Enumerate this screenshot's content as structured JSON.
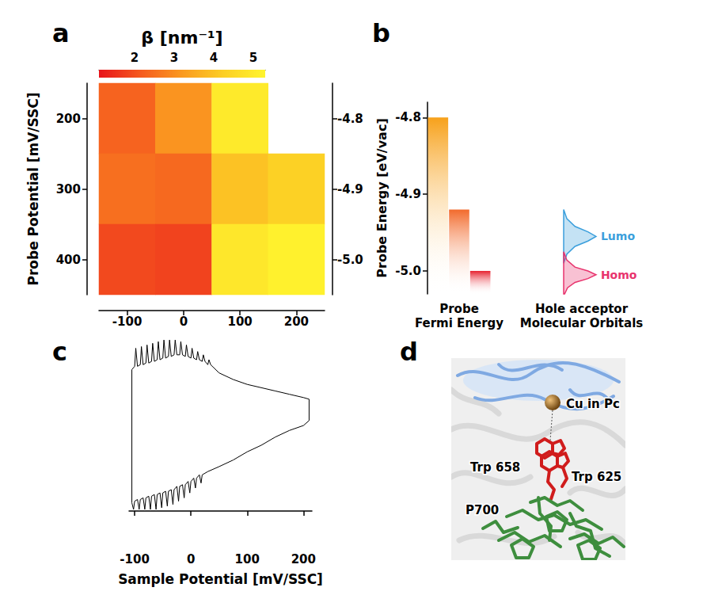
{
  "chart_data": [
    {
      "panel": "a",
      "type": "heatmap",
      "x": [
        -100,
        0,
        100,
        200
      ],
      "y": [
        200,
        300,
        400
      ],
      "ylabel": "Probe Potential [mV/SSC]",
      "y2": [
        -4.8,
        -4.9,
        {
          "value": -5.0,
          "label": "-5.0"
        }
      ],
      "values": [
        [
          2.3,
          3.1,
          5.0,
          null
        ],
        [
          2.5,
          2.4,
          4.0,
          4.3
        ],
        [
          1.9,
          1.8,
          4.9,
          5.2
        ]
      ],
      "colorbar": {
        "title": "β [nm⁻¹]",
        "range": [
          1.1,
          5.3
        ],
        "ticks": [
          2,
          3,
          4,
          5
        ],
        "colors": [
          "#e8141b",
          "#f55a1f",
          "#fa9a20",
          "#fccf25",
          "#fff52e"
        ]
      }
    },
    {
      "panel": "b",
      "type": "bar",
      "categories": [
        null,
        null,
        null
      ],
      "values": [
        -4.8,
        -4.92,
        -5.0
      ],
      "colors": [
        "#f7a11a",
        "#f26a2c",
        "#e6202e"
      ],
      "xlabel": "Probe\nFermi Energy",
      "ylabel": "Probe Energy [eV/vac]",
      "ylim": [
        -5.03,
        -4.78
      ],
      "yticks": [
        -4.8,
        -4.9,
        {
          "value": -5.0,
          "label": "-5.0"
        }
      ],
      "orbitals": {
        "title": "Hole acceptor\nMolecular Orbitals",
        "type": "area",
        "xlim": [
          0,
          1.1
        ],
        "tick_labels": false,
        "series": [
          {
            "name": "Lumo",
            "color": "#3b9fdc",
            "energy": [
              -4.92,
              -4.932,
              -4.942,
              -4.949,
              -4.955,
              -4.961,
              -4.968,
              -4.978,
              -4.99
            ],
            "density": [
              0,
              0.1,
              0.35,
              0.75,
              1,
              0.75,
              0.35,
              0.1,
              0
            ]
          },
          {
            "name": "Homo",
            "color": "#e8336d",
            "energy": [
              -4.975,
              -4.986,
              -4.995,
              -5.0,
              -5.005,
              -5.01,
              -5.015,
              -5.022,
              -5.03
            ],
            "density": [
              0,
              0.1,
              0.35,
              0.75,
              1,
              0.75,
              0.35,
              0.12,
              0.03
            ]
          }
        ]
      }
    },
    {
      "panel": "c",
      "type": "line",
      "color": "#000000",
      "tick_labels": "x",
      "xlabel": "Sample Potential [mV/SSC]",
      "xlim": [
        -110,
        215
      ],
      "xticks": [
        -100,
        0,
        100,
        200
      ],
      "ylim": [
        0,
        106
      ],
      "x": [
        -105,
        -105,
        -100,
        -98,
        -95,
        -90,
        -88,
        -85,
        -80,
        -78,
        -75,
        -70,
        -68,
        -65,
        -60,
        -58,
        -55,
        -50,
        -48,
        -45,
        -40,
        -38,
        -35,
        -30,
        -28,
        -25,
        -20,
        -18,
        -15,
        -10,
        -8,
        -5,
        0,
        2,
        5,
        10,
        12,
        15,
        20,
        22,
        25,
        30,
        32,
        35,
        50,
        75,
        100,
        125,
        150,
        175,
        200,
        210,
        210,
        200,
        175,
        150,
        125,
        100,
        75,
        50,
        30,
        25,
        20,
        18,
        15,
        10,
        8,
        5,
        0,
        -2,
        -5,
        -10,
        -12,
        -15,
        -20,
        -22,
        -25,
        -30,
        -32,
        -35,
        -40,
        -42,
        -45,
        -50,
        -52,
        -55,
        -60,
        -62,
        -65,
        -70,
        -72,
        -75,
        -80,
        -82,
        -85,
        -90,
        -92,
        -95,
        -100,
        -102,
        -105
      ],
      "values": [
        5,
        86,
        88,
        99,
        88,
        89,
        100,
        89,
        90,
        101,
        90,
        91,
        102,
        91,
        92,
        103,
        92,
        93,
        104,
        93,
        94,
        104,
        94,
        95,
        104,
        95,
        95,
        103,
        95,
        94,
        101,
        94,
        93,
        99,
        93,
        92,
        97,
        92,
        91,
        95,
        91,
        89,
        92,
        89,
        84,
        80,
        77,
        75,
        73,
        71,
        69,
        68,
        55,
        52,
        49,
        45,
        40,
        36,
        31,
        27,
        24,
        23,
        22,
        17,
        22,
        20,
        14,
        20,
        18,
        11,
        18,
        16,
        8,
        16,
        15,
        6,
        15,
        13,
        4,
        13,
        12,
        3,
        12,
        11,
        2,
        11,
        10,
        1,
        10,
        9,
        1,
        9,
        8,
        1,
        8,
        7,
        1,
        7,
        6,
        1,
        5
      ]
    }
  ],
  "diagram": {
    "panel": "d",
    "labels": {
      "cu": "Cu in Pc",
      "trp658": "Trp 658",
      "trp625": "Trp 625",
      "p700": "P700"
    }
  }
}
